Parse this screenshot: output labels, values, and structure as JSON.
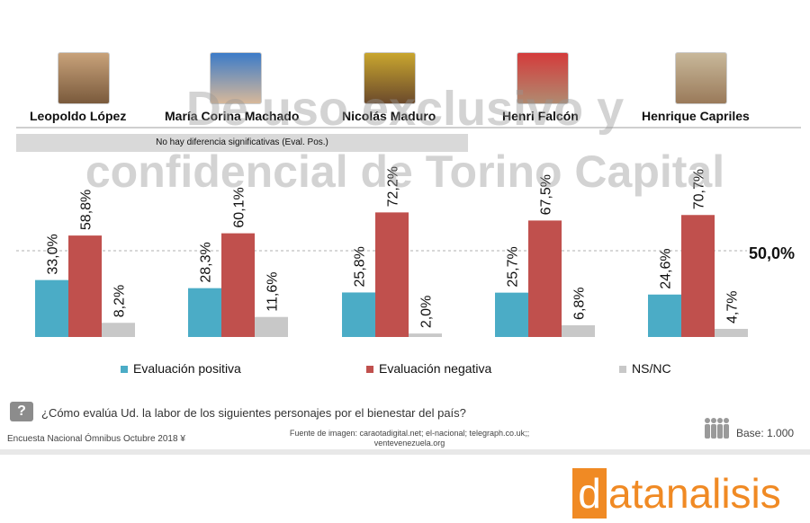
{
  "people": [
    {
      "name": "Leopoldo López"
    },
    {
      "name": "María Corina Machado"
    },
    {
      "name": "Nicolás Maduro"
    },
    {
      "name": "Henri Falcón"
    },
    {
      "name": "Henrique Capriles"
    }
  ],
  "note": "No hay diferencia significativas (Eval. Pos.)",
  "watermark": {
    "line1": "De uso exclusivo y",
    "line2": "confidencial de Torino Capital"
  },
  "chart_data": {
    "type": "bar",
    "categories": [
      "Leopoldo López",
      "María Corina Machado",
      "Nicolás Maduro",
      "Henri Falcón",
      "Henrique Capriles"
    ],
    "series": [
      {
        "name": "Evaluación positiva",
        "values": [
          33.0,
          28.3,
          25.8,
          25.7,
          24.6
        ],
        "labels": [
          "33,0%",
          "28,3%",
          "25,8%",
          "25,7%",
          "24,6%"
        ],
        "color": "#4bacc6"
      },
      {
        "name": "Evaluación negativa",
        "values": [
          58.8,
          60.1,
          72.2,
          67.5,
          70.7
        ],
        "labels": [
          "58,8%",
          "60,1%",
          "72,2%",
          "67,5%",
          "70,7%"
        ],
        "color": "#c0504d"
      },
      {
        "name": "NS/NC",
        "values": [
          8.2,
          11.6,
          2.0,
          6.8,
          4.7
        ],
        "labels": [
          "8,2%",
          "11,6%",
          "2,0%",
          "6,8%",
          "4,7%"
        ],
        "color": "#c8c8c8"
      }
    ],
    "reference_line": {
      "value": 50.0,
      "label": "50,0%"
    },
    "ylim": [
      0,
      100
    ],
    "legend_position": "bottom",
    "grid": false
  },
  "question": "¿Cómo evalúa Ud. la labor de los siguientes  personajes por el bienestar del país?",
  "survey": "Encuesta Nacional Ómnibus Octubre 2018 ¥",
  "source_line1": "Fuente de imagen: caraotadigital.net; el-nacional; telegraph.co.uk;;",
  "source_line2": "ventevenezuela.org",
  "base": "Base: 1.000",
  "logo": {
    "first": "d",
    "rest": "atanalisis"
  },
  "colors": {
    "positive": "#4bacc6",
    "negative": "#c0504d",
    "nsnc": "#c8c8c8",
    "brand": "#f08a24"
  },
  "icons": {
    "question": "question-icon",
    "people": "people-icon"
  }
}
